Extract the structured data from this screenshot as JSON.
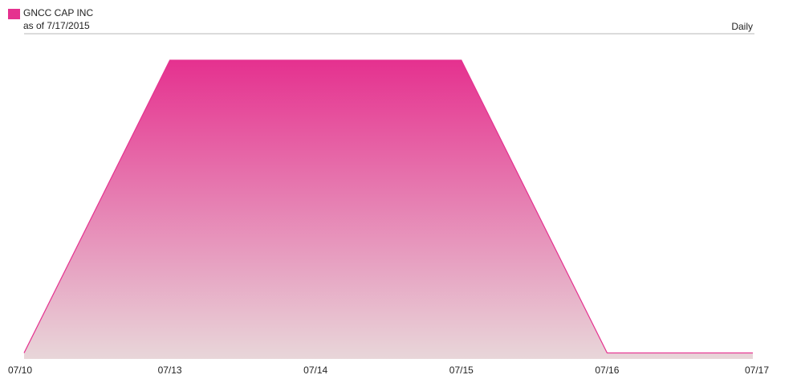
{
  "chart_data": {
    "type": "area",
    "subtitle": "as of 7/17/2015",
    "frequency": "Daily",
    "categories": [
      "07/10",
      "07/13",
      "07/14",
      "07/15",
      "07/16",
      "07/17"
    ],
    "series": [
      {
        "name": "GNCC CAP INC",
        "color": "#e5318f",
        "values": [
          2,
          100,
          100,
          100,
          2,
          2
        ]
      }
    ],
    "ylim": [
      0,
      100
    ]
  }
}
